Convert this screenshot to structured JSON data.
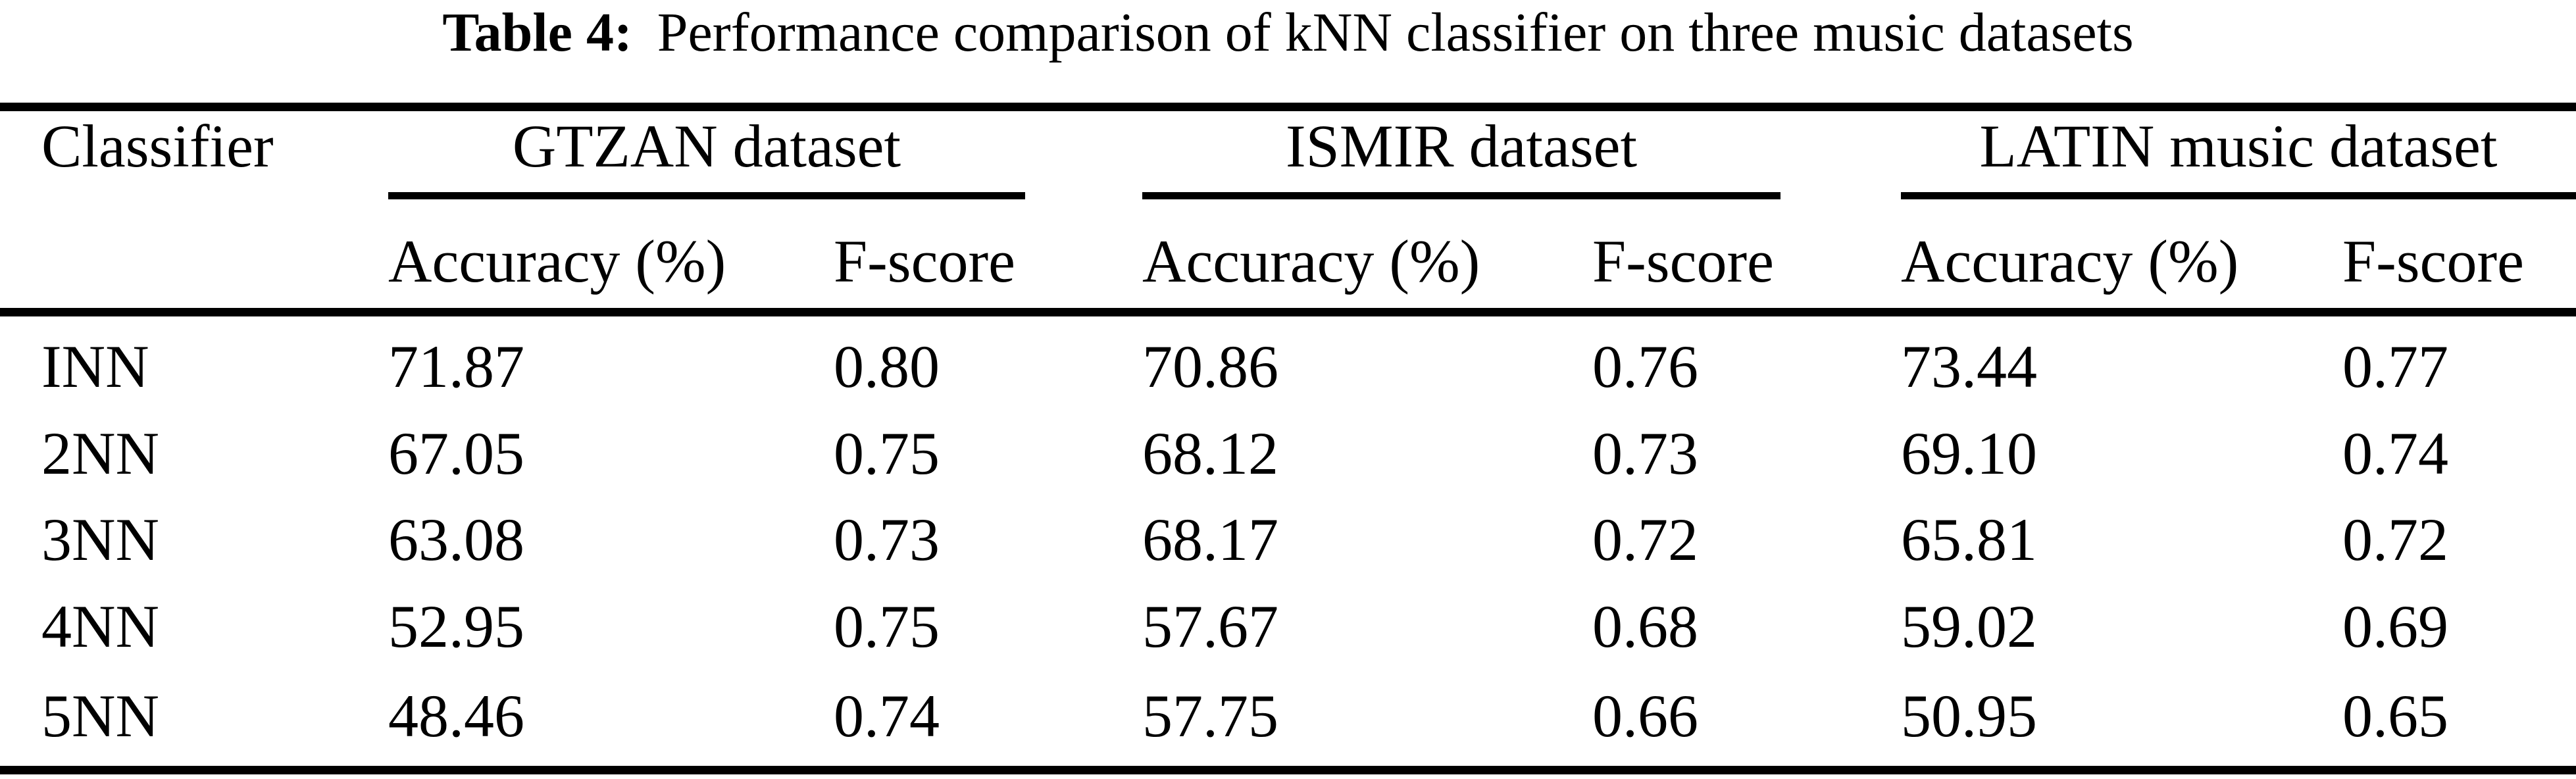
{
  "caption": {
    "label": "Table 4:",
    "text": "Performance comparison of kNN classifier on three music datasets"
  },
  "table": {
    "corner_header": "Classifier",
    "group_headers": [
      "GTZAN dataset",
      "ISMIR dataset",
      "LATIN music dataset"
    ],
    "sub_headers": [
      "Accuracy (%)",
      "F-score",
      "Accuracy (%)",
      "F-score",
      "Accuracy (%)",
      "F-score"
    ],
    "rows": [
      {
        "cells": [
          "INN",
          "71.87",
          "0.80",
          "70.86",
          "0.76",
          "73.44",
          "0.77"
        ]
      },
      {
        "cells": [
          "2NN",
          "67.05",
          "0.75",
          "68.12",
          "0.73",
          "69.10",
          "0.74"
        ]
      },
      {
        "cells": [
          "3NN",
          "63.08",
          "0.73",
          "68.17",
          "0.72",
          "65.81",
          "0.72"
        ]
      },
      {
        "cells": [
          "4NN",
          "52.95",
          "0.75",
          "57.67",
          "0.68",
          "59.02",
          "0.69"
        ]
      },
      {
        "cells": [
          "5NN",
          "48.46",
          "0.74",
          "57.75",
          "0.66",
          "50.95",
          "0.65"
        ]
      }
    ]
  },
  "chart_data": {
    "type": "table",
    "title": "Table 4: Performance comparison of kNN classifier on three music datasets",
    "columns": [
      "Classifier",
      "GTZAN Accuracy (%)",
      "GTZAN F-score",
      "ISMIR Accuracy (%)",
      "ISMIR F-score",
      "LATIN Accuracy (%)",
      "LATIN F-score"
    ],
    "rows": [
      [
        "INN",
        71.87,
        0.8,
        70.86,
        0.76,
        73.44,
        0.77
      ],
      [
        "2NN",
        67.05,
        0.75,
        68.12,
        0.73,
        69.1,
        0.74
      ],
      [
        "3NN",
        63.08,
        0.73,
        68.17,
        0.72,
        65.81,
        0.72
      ],
      [
        "4NN",
        52.95,
        0.75,
        57.67,
        0.68,
        59.02,
        0.69
      ],
      [
        "5NN",
        48.46,
        0.74,
        57.75,
        0.66,
        50.95,
        0.65
      ]
    ]
  },
  "colors": {
    "text": "#000000",
    "background": "#ffffff"
  }
}
